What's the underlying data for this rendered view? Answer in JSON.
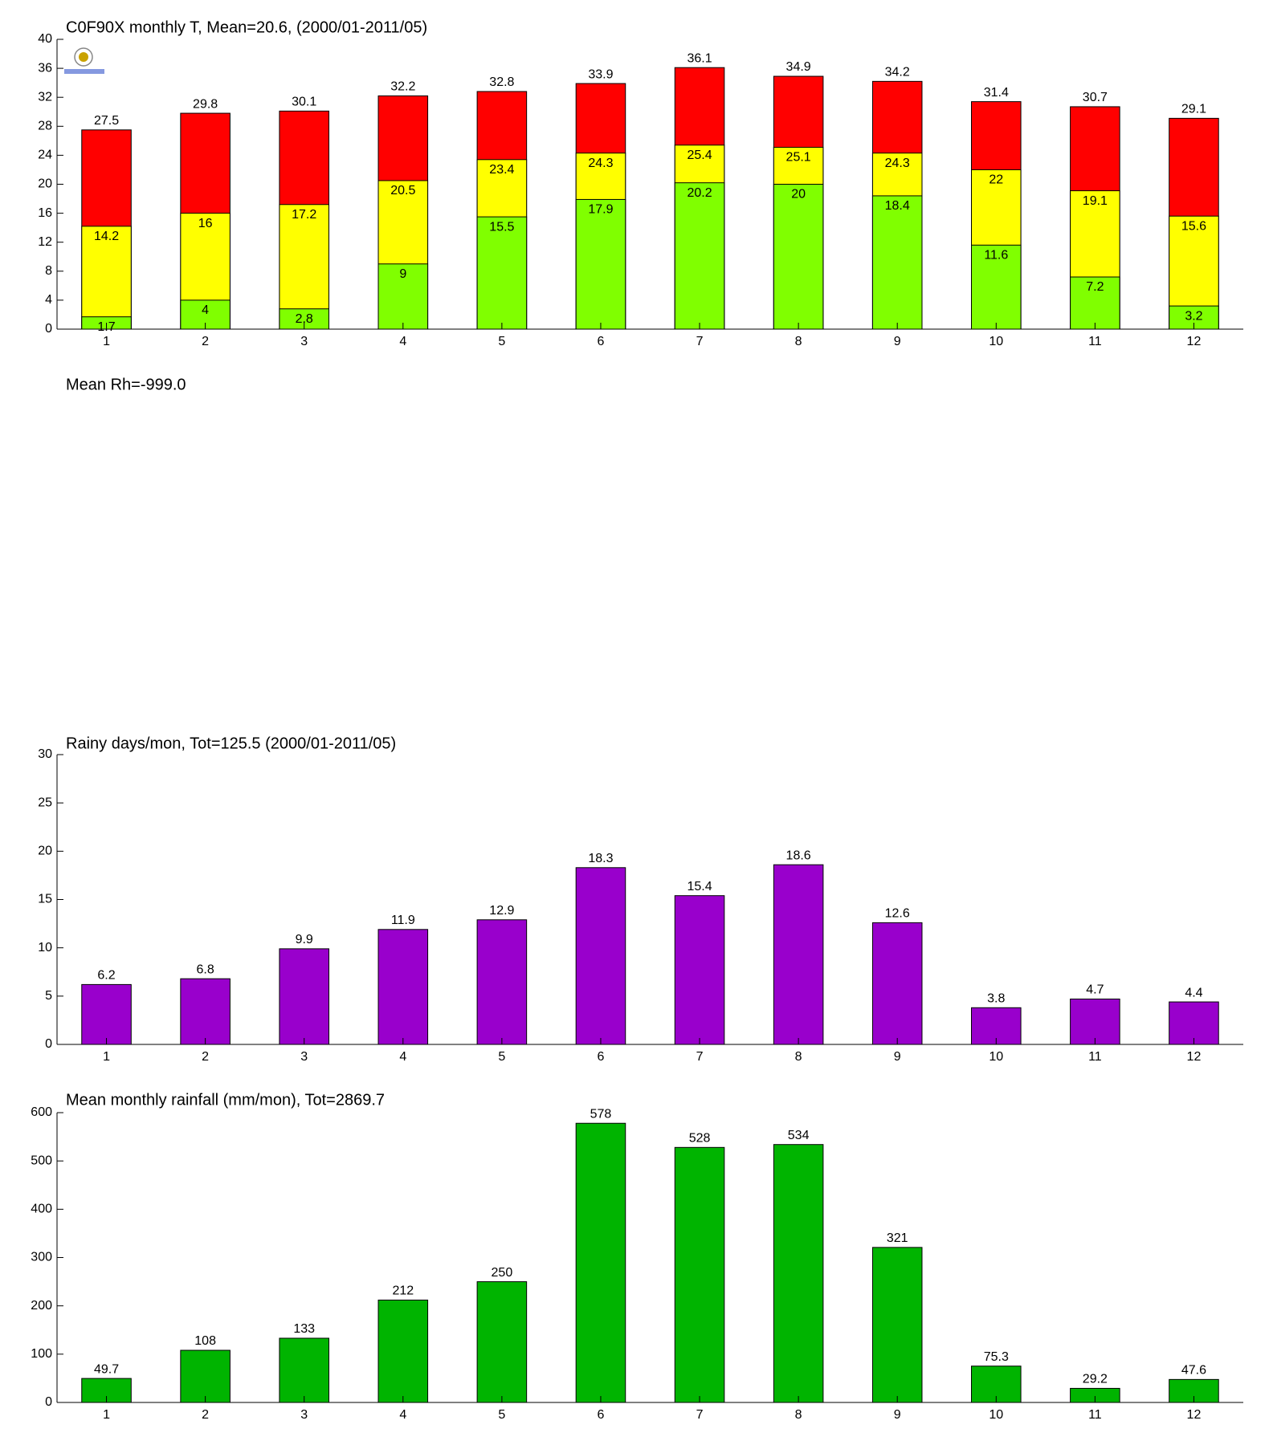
{
  "chart_data": [
    {
      "type": "bar",
      "title": "C0F90X monthly T, Mean=20.6, (2000/01-2011/05)",
      "categories": [
        "1",
        "2",
        "3",
        "4",
        "5",
        "6",
        "7",
        "8",
        "9",
        "10",
        "11",
        "12"
      ],
      "series": [
        {
          "color": "#ff0000",
          "values": [
            27.5,
            29.8,
            30.1,
            32.2,
            32.8,
            33.9,
            36.1,
            34.9,
            34.2,
            31.4,
            30.7,
            29.1
          ]
        },
        {
          "color": "#ffff00",
          "values": [
            14.2,
            16,
            17.2,
            20.5,
            23.4,
            24.3,
            25.4,
            25.1,
            24.3,
            22,
            19.1,
            15.6
          ]
        },
        {
          "color": "#80ff00",
          "values": [
            1.7,
            4,
            2.8,
            9,
            15.5,
            17.9,
            20.2,
            20,
            18.4,
            11.6,
            7.2,
            3.2
          ]
        }
      ],
      "ylim": [
        0,
        40
      ],
      "yticks": [
        0,
        4,
        8,
        12,
        16,
        20,
        24,
        28,
        32,
        36,
        40
      ]
    },
    {
      "type": "empty",
      "title": "Mean Rh=-999.0"
    },
    {
      "type": "bar",
      "title": "Rainy days/mon, Tot=125.5 (2000/01-2011/05)",
      "categories": [
        "1",
        "2",
        "3",
        "4",
        "5",
        "6",
        "7",
        "8",
        "9",
        "10",
        "11",
        "12"
      ],
      "series": [
        {
          "color": "#9900cc",
          "values": [
            6.2,
            6.8,
            9.9,
            11.9,
            12.9,
            18.3,
            15.4,
            18.6,
            12.6,
            3.8,
            4.7,
            4.4
          ]
        }
      ],
      "ylim": [
        0,
        30
      ],
      "yticks": [
        0,
        5,
        10,
        15,
        20,
        25,
        30
      ]
    },
    {
      "type": "bar",
      "title": "Mean monthly rainfall (mm/mon), Tot=2869.7",
      "categories": [
        "1",
        "2",
        "3",
        "4",
        "5",
        "6",
        "7",
        "8",
        "9",
        "10",
        "11",
        "12"
      ],
      "series": [
        {
          "color": "#00b400",
          "values": [
            49.7,
            108,
            133,
            212,
            250,
            578,
            528,
            534,
            321,
            75.3,
            29.2,
            47.6
          ]
        }
      ],
      "ylim": [
        0,
        600
      ],
      "yticks": [
        0,
        100,
        200,
        300,
        400,
        500,
        600
      ]
    }
  ]
}
